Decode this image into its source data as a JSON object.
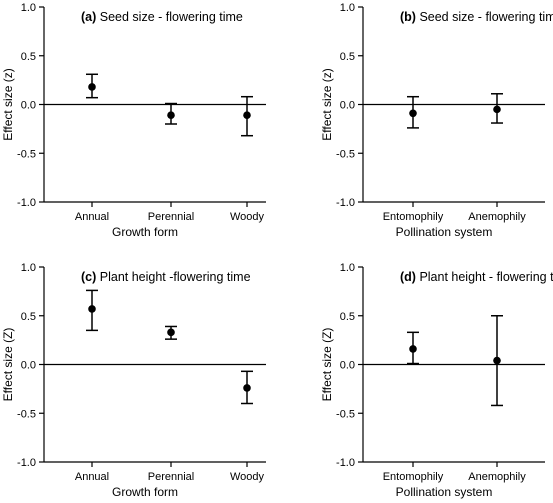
{
  "chart_data": [
    {
      "type": "scatter",
      "panel_label": "(a)",
      "title": "Seed size - flowering time",
      "xlabel": "Growth form",
      "ylabel": "Effect size (z)",
      "ylim": [
        -1.0,
        1.0
      ],
      "yticks": [
        "-1.0",
        "-0.5",
        "0.0",
        "0.5",
        "1.0"
      ],
      "categories": [
        "Annual",
        "Perennial",
        "Woody"
      ],
      "values": [
        0.18,
        -0.11,
        -0.11
      ],
      "lower": [
        0.07,
        -0.2,
        -0.32
      ],
      "upper": [
        0.31,
        0.01,
        0.08
      ],
      "reference_line": 0.0
    },
    {
      "type": "scatter",
      "panel_label": "(b)",
      "title": "Seed size - flowering time",
      "xlabel": "Pollination system",
      "ylabel": "Effect size (z)",
      "ylim": [
        -1.0,
        1.0
      ],
      "yticks": [
        "-1.0",
        "-0.5",
        "0.0",
        "0.5",
        "1.0"
      ],
      "categories": [
        "Entomophily",
        "Anemophily"
      ],
      "values": [
        -0.09,
        -0.05
      ],
      "lower": [
        -0.24,
        -0.19
      ],
      "upper": [
        0.08,
        0.11
      ],
      "reference_line": 0.0
    },
    {
      "type": "scatter",
      "panel_label": "(c)",
      "title": "Plant height -flowering time",
      "xlabel": "Growth form",
      "ylabel": "Effect size (Z)",
      "ylim": [
        -1.0,
        1.0
      ],
      "yticks": [
        "-1.0",
        "-0.5",
        "0.0",
        "0.5",
        "1.0"
      ],
      "categories": [
        "Annual",
        "Perennial",
        "Woody"
      ],
      "values": [
        0.57,
        0.33,
        -0.24
      ],
      "lower": [
        0.35,
        0.26,
        -0.4
      ],
      "upper": [
        0.76,
        0.39,
        -0.07
      ],
      "reference_line": 0.0
    },
    {
      "type": "scatter",
      "panel_label": "(d)",
      "title": "Plant height - flowering time",
      "xlabel": "Pollination system",
      "ylabel": "Effect size (Z)",
      "ylim": [
        -1.0,
        1.0
      ],
      "yticks": [
        "-1.0",
        "-0.5",
        "0.0",
        "0.5",
        "1.0"
      ],
      "categories": [
        "Entomophily",
        "Anemophily"
      ],
      "values": [
        0.16,
        0.04
      ],
      "lower": [
        0.01,
        -0.42
      ],
      "upper": [
        0.33,
        0.5
      ],
      "reference_line": 0.0
    }
  ]
}
